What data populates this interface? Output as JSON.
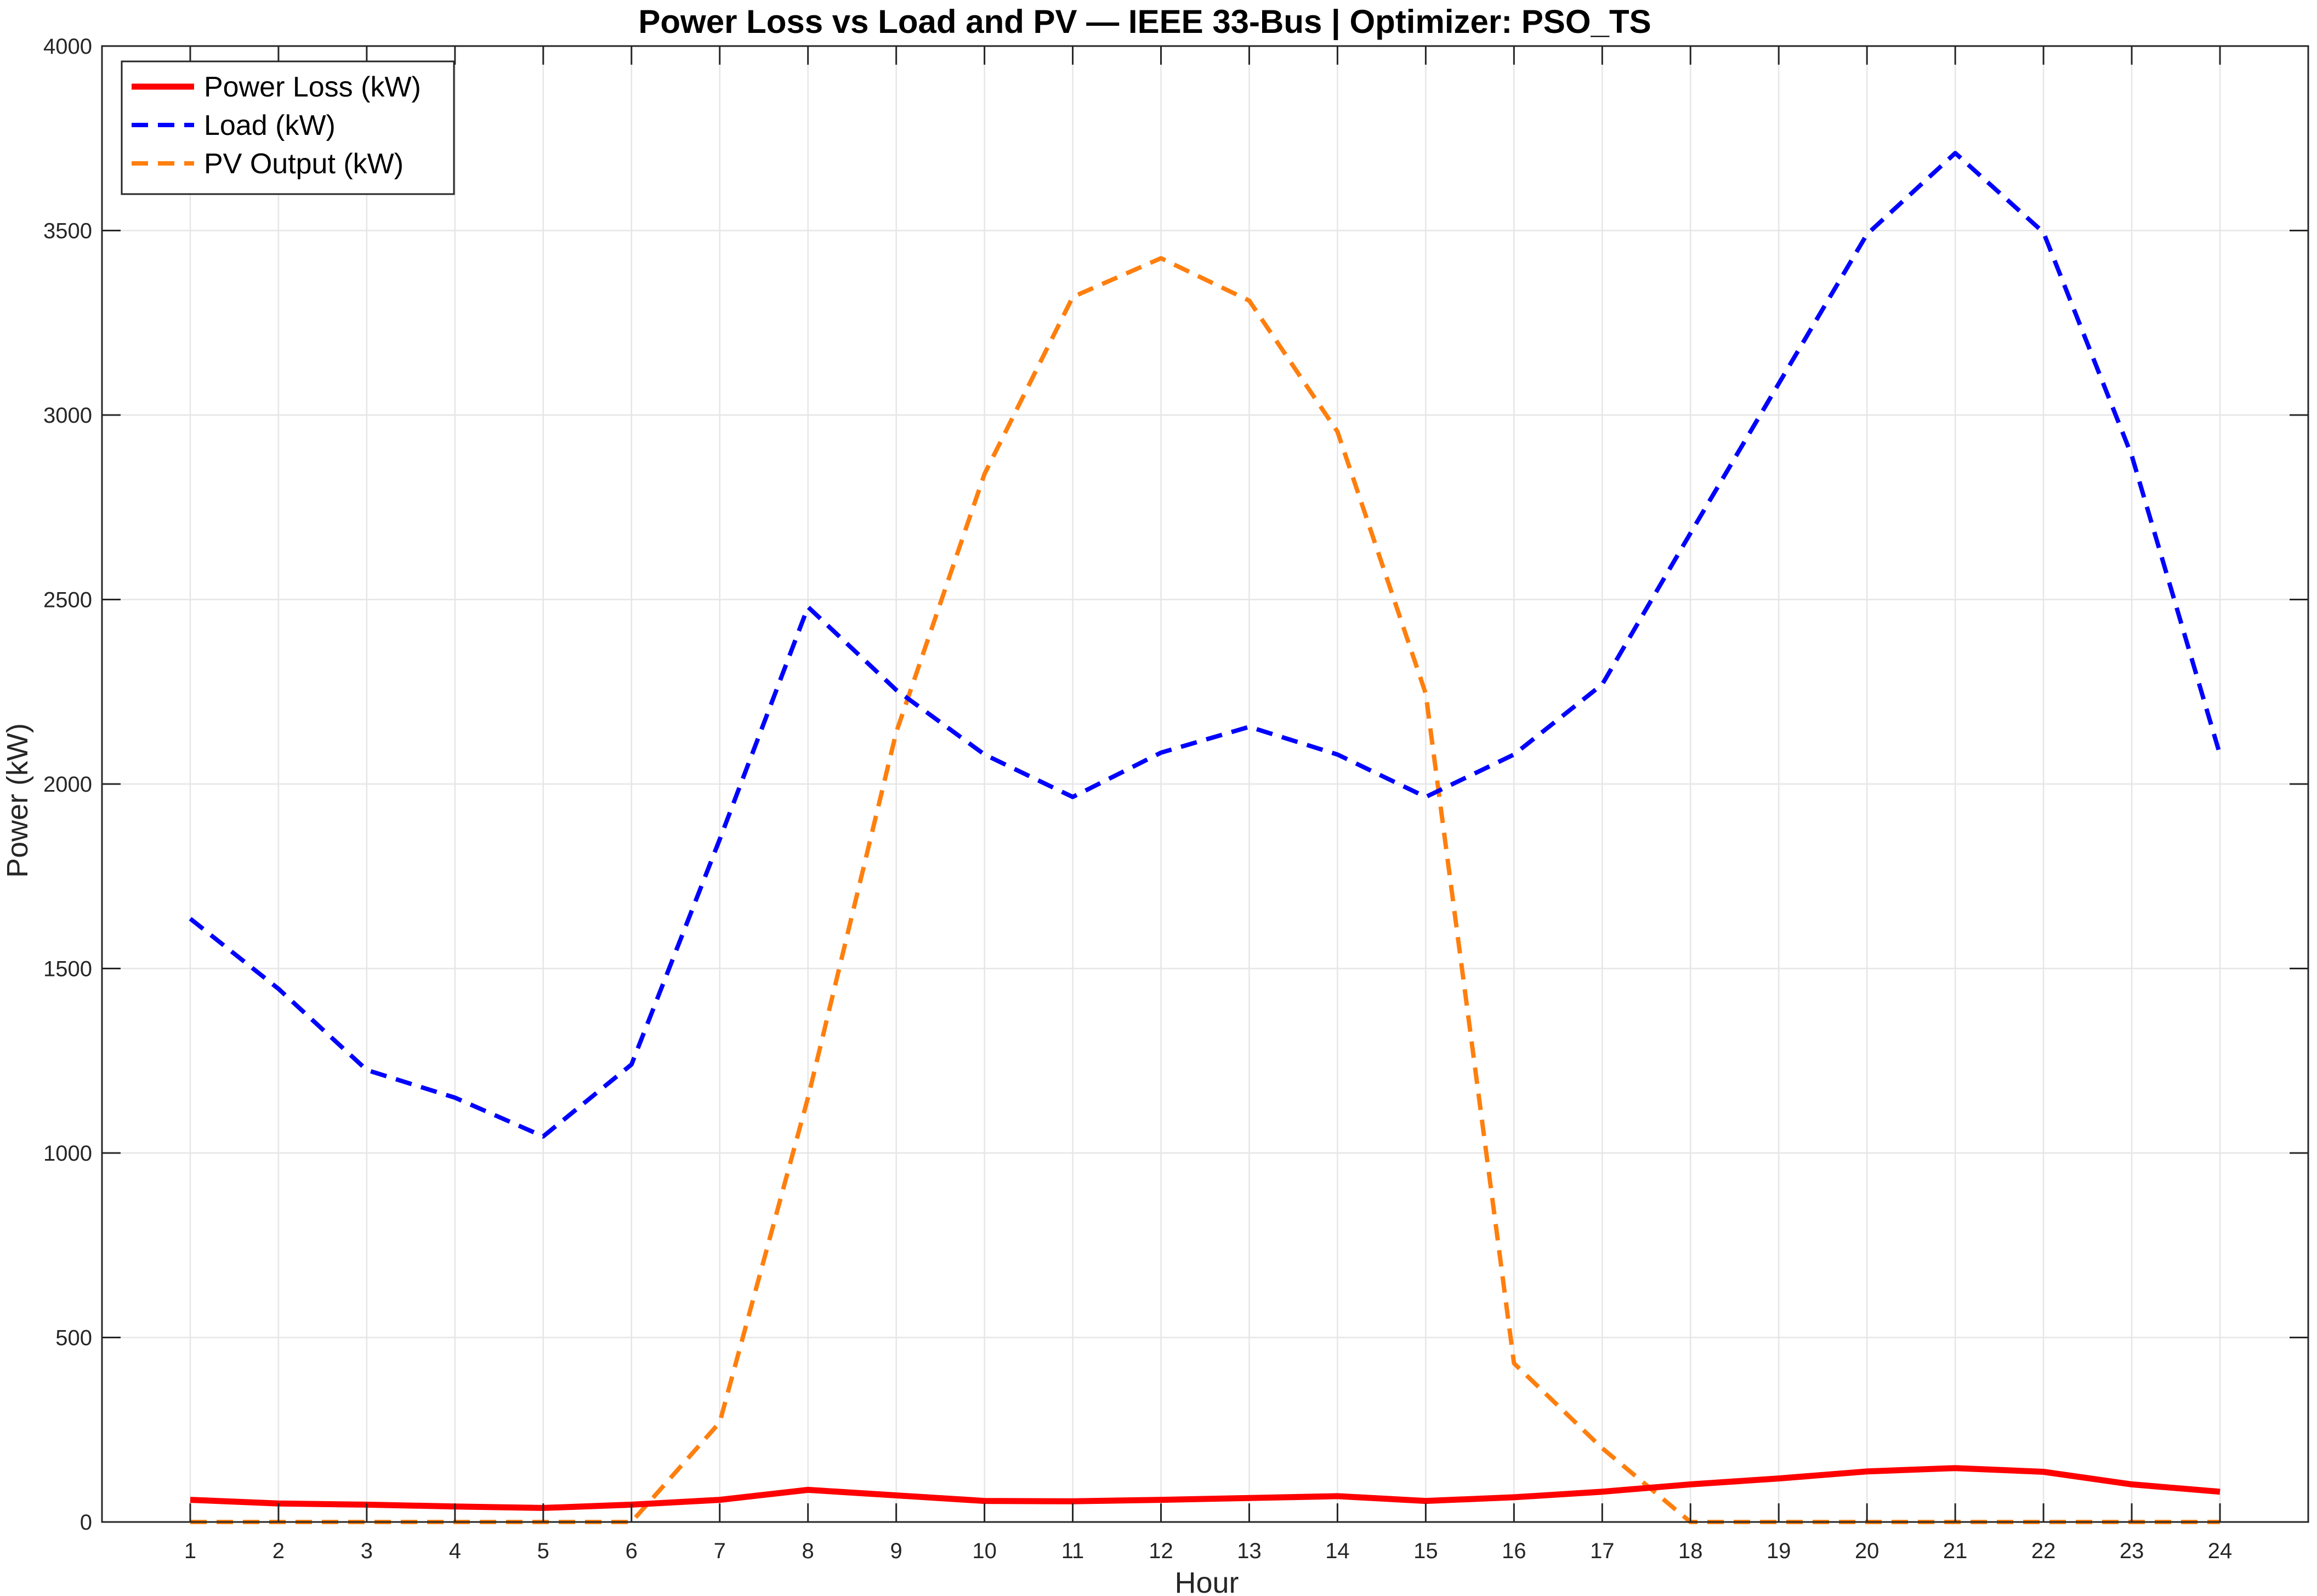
{
  "chart_data": {
    "type": "line",
    "title": "Power Loss vs Load and PV — IEEE 33-Bus | Optimizer: PSO_TS",
    "xlabel": "Hour",
    "ylabel": "Power (kW)",
    "xlim": [
      0,
      25
    ],
    "ylim": [
      0,
      4000
    ],
    "x": [
      1,
      2,
      3,
      4,
      5,
      6,
      7,
      8,
      9,
      10,
      11,
      12,
      13,
      14,
      15,
      16,
      17,
      18,
      19,
      20,
      21,
      22,
      23,
      24
    ],
    "xticks": [
      "1",
      "2",
      "3",
      "4",
      "5",
      "6",
      "7",
      "8",
      "9",
      "10",
      "11",
      "12",
      "13",
      "14",
      "15",
      "16",
      "17",
      "18",
      "19",
      "20",
      "21",
      "22",
      "23",
      "24"
    ],
    "yticks": [
      "0",
      "500",
      "1000",
      "1500",
      "2000",
      "2500",
      "3000",
      "3500",
      "4000"
    ],
    "grid": true,
    "legend_position": "top-left",
    "series": [
      {
        "name": "Power Loss (kW)",
        "color": "#ff0000",
        "style": "solid",
        "values": [
          60,
          50,
          47,
          42,
          38,
          47,
          60,
          87,
          72,
          57,
          56,
          60,
          65,
          70,
          57,
          67,
          82,
          102,
          118,
          137,
          146,
          136,
          102,
          82
        ]
      },
      {
        "name": "Load (kW)",
        "color": "#0000ff",
        "style": "dashed",
        "values": [
          1635,
          1445,
          1225,
          1150,
          1045,
          1240,
          1850,
          2480,
          2255,
          2080,
          1965,
          2085,
          2155,
          2080,
          1965,
          2080,
          2270,
          2680,
          3085,
          3490,
          3710,
          3495,
          2890,
          2080
        ]
      },
      {
        "name": "PV Output (kW)",
        "color": "#ff7f0e",
        "style": "dashed",
        "values": [
          0,
          0,
          0,
          0,
          0,
          0,
          270,
          1150,
          2140,
          2840,
          3320,
          3425,
          3310,
          2955,
          2245,
          430,
          200,
          0,
          0,
          0,
          0,
          0,
          0,
          0
        ]
      }
    ]
  }
}
